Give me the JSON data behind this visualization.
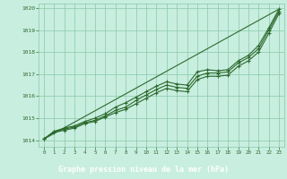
{
  "x": [
    0,
    1,
    2,
    3,
    4,
    5,
    6,
    7,
    8,
    9,
    10,
    11,
    12,
    13,
    14,
    15,
    16,
    17,
    18,
    19,
    20,
    21,
    22,
    23
  ],
  "y_main": [
    1014.05,
    1014.4,
    1014.5,
    1014.6,
    1014.8,
    1014.9,
    1015.1,
    1015.35,
    1015.5,
    1015.8,
    1016.05,
    1016.3,
    1016.5,
    1016.4,
    1016.35,
    1016.9,
    1017.05,
    1017.05,
    1017.1,
    1017.5,
    1017.75,
    1018.15,
    1019.0,
    1019.85
  ],
  "y_line2": [
    1014.05,
    1014.4,
    1014.55,
    1014.65,
    1014.85,
    1015.0,
    1015.2,
    1015.5,
    1015.7,
    1015.95,
    1016.2,
    1016.45,
    1016.65,
    1016.55,
    1016.5,
    1017.1,
    1017.2,
    1017.15,
    1017.2,
    1017.6,
    1017.85,
    1018.3,
    1019.1,
    1019.95
  ],
  "y_line3": [
    1014.05,
    1014.35,
    1014.45,
    1014.55,
    1014.75,
    1014.85,
    1015.05,
    1015.25,
    1015.4,
    1015.65,
    1015.9,
    1016.15,
    1016.35,
    1016.25,
    1016.2,
    1016.75,
    1016.9,
    1016.9,
    1016.95,
    1017.35,
    1017.6,
    1018.0,
    1018.85,
    1019.75
  ],
  "background_color": "#c8eee0",
  "grid_color": "#88c8a8",
  "line_color": "#2d6a2d",
  "label_bg_color": "#3a7a3a",
  "label_text_color": "#ffffff",
  "xlabel": "Graphe pression niveau de la mer (hPa)",
  "ylim": [
    1013.7,
    1020.2
  ],
  "xlim": [
    -0.5,
    23.5
  ],
  "yticks": [
    1014,
    1015,
    1016,
    1017,
    1018,
    1019,
    1020
  ],
  "xticks": [
    0,
    1,
    2,
    3,
    4,
    5,
    6,
    7,
    8,
    9,
    10,
    11,
    12,
    13,
    14,
    15,
    16,
    17,
    18,
    19,
    20,
    21,
    22,
    23
  ]
}
